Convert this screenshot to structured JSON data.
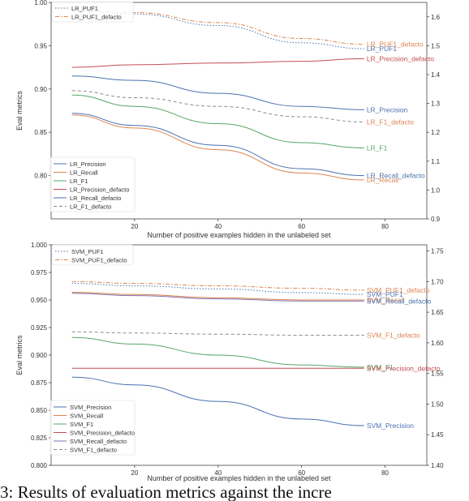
{
  "caption": "3: Results of evaluation metrics against the incre",
  "chart_data": [
    {
      "type": "line",
      "xlabel": "Number of positive examples hidden in the unlabeled set",
      "ylabel": "Eval metrics",
      "xlim": [
        0,
        90
      ],
      "ylim": [
        0.75,
        1.0
      ],
      "y2lim": [
        0.9,
        1.65
      ],
      "xticks": [
        20,
        40,
        60,
        80
      ],
      "yticks": [
        0.8,
        0.85,
        0.9,
        0.95,
        1.0
      ],
      "y2ticks": [
        0.9,
        1.0,
        1.1,
        1.2,
        1.3,
        1.4,
        1.5,
        1.6
      ],
      "xtick_labels": [
        "20",
        "40",
        "60",
        "80"
      ],
      "ytick_labels": [
        "0.80",
        "0.85",
        "0.90",
        "0.95",
        "1.00"
      ],
      "y2tick_labels": [
        "0.9",
        "1.0",
        "1.1",
        "1.2",
        "1.3",
        "1.4",
        "1.5",
        "1.6"
      ],
      "grid": false,
      "legend_top": [
        "LR_PUF1",
        "LR_PUF1_defacto"
      ],
      "legend_bottom": [
        "LR_Precision",
        "LR_Recall",
        "LR_F1",
        "LR_Precision_defacto",
        "LR_Recall_defacto",
        "LR_F1_defacto"
      ],
      "series": [
        {
          "name": "LR_PUF1",
          "axis": "right",
          "color": "#4c72b0",
          "dash": "dot",
          "label": "LR_PUF1",
          "label_color": "#4c72b0",
          "points": [
            [
              5,
              1.62
            ],
            [
              20,
              1.61
            ],
            [
              40,
              1.57
            ],
            [
              60,
              1.51
            ],
            [
              75,
              1.49
            ]
          ]
        },
        {
          "name": "LR_PUF1_defacto",
          "axis": "right",
          "color": "#dd8452",
          "dash": "dashdot",
          "label": "LR_PUF1_defacto",
          "label_color": "#dd8452",
          "points": [
            [
              5,
              1.625
            ],
            [
              20,
              1.615
            ],
            [
              40,
              1.58
            ],
            [
              60,
              1.525
            ],
            [
              75,
              1.505
            ]
          ]
        },
        {
          "name": "LR_Precision_defacto",
          "axis": "left",
          "color": "#c44e52",
          "dash": "solid",
          "label": "LR_Precision_defacto",
          "label_color": "#c44e52",
          "points": [
            [
              5,
              0.925
            ],
            [
              20,
              0.928
            ],
            [
              40,
              0.93
            ],
            [
              60,
              0.932
            ],
            [
              75,
              0.935
            ]
          ]
        },
        {
          "name": "LR_Precision",
          "axis": "left",
          "color": "#4c72b0",
          "dash": "solid",
          "label": "LR_Precision",
          "label_color": "#4c72b0",
          "points": [
            [
              5,
              0.915
            ],
            [
              20,
              0.91
            ],
            [
              40,
              0.895
            ],
            [
              60,
              0.88
            ],
            [
              75,
              0.876
            ]
          ]
        },
        {
          "name": "LR_F1_defacto",
          "axis": "left",
          "color": "#8c8c8c",
          "dash": "dash",
          "label": "LR_F1_defacto",
          "label_color": "#dd8452",
          "points": [
            [
              5,
              0.898
            ],
            [
              20,
              0.89
            ],
            [
              40,
              0.88
            ],
            [
              60,
              0.868
            ],
            [
              75,
              0.862
            ]
          ]
        },
        {
          "name": "LR_F1",
          "axis": "left",
          "color": "#55a868",
          "dash": "solid",
          "label": "LR_F1",
          "label_color": "#55a868",
          "points": [
            [
              5,
              0.893
            ],
            [
              20,
              0.88
            ],
            [
              40,
              0.86
            ],
            [
              60,
              0.838
            ],
            [
              75,
              0.832
            ]
          ]
        },
        {
          "name": "LR_Recall_defacto",
          "axis": "left",
          "color": "#4c72b0",
          "dash": "solid",
          "label": "LR_Recall_defacto",
          "label_color": "#4c72b0",
          "points": [
            [
              5,
              0.872
            ],
            [
              20,
              0.858
            ],
            [
              40,
              0.835
            ],
            [
              60,
              0.808
            ],
            [
              75,
              0.8
            ]
          ]
        },
        {
          "name": "LR_Recall",
          "axis": "left",
          "color": "#dd8452",
          "dash": "solid",
          "label": "LR_Recall",
          "label_color": "#dd8452",
          "points": [
            [
              5,
              0.87
            ],
            [
              20,
              0.855
            ],
            [
              40,
              0.83
            ],
            [
              60,
              0.803
            ],
            [
              75,
              0.795
            ]
          ]
        }
      ]
    },
    {
      "type": "line",
      "xlabel": "Number of positive examples hidden in the unlabeled set",
      "ylabel": "Eval metrics",
      "xlim": [
        0,
        90
      ],
      "ylim": [
        0.8,
        1.0
      ],
      "y2lim": [
        1.4,
        1.76
      ],
      "xticks": [
        20,
        40,
        60,
        80
      ],
      "yticks": [
        0.8,
        0.825,
        0.85,
        0.875,
        0.9,
        0.925,
        0.95,
        0.975,
        1.0
      ],
      "y2ticks": [
        1.4,
        1.45,
        1.5,
        1.55,
        1.6,
        1.65,
        1.7,
        1.75
      ],
      "xtick_labels": [
        "20",
        "40",
        "60",
        "80"
      ],
      "ytick_labels": [
        "0.800",
        "0.825",
        "0.850",
        "0.875",
        "0.900",
        "0.925",
        "0.950",
        "0.975",
        "1.000"
      ],
      "y2tick_labels": [
        "1.40",
        "1.45",
        "1.50",
        "1.55",
        "1.60",
        "1.65",
        "1.70",
        "1.75"
      ],
      "grid": false,
      "legend_top": [
        "SVM_PUF1",
        "SVM_PUF1_defacto"
      ],
      "legend_bottom": [
        "SVM_Precision",
        "SVM_Recall",
        "SVM_F1",
        "SVM_Precision_defacto",
        "SVM_Recall_defacto",
        "SVM_F1_defacto"
      ],
      "series": [
        {
          "name": "SVM_PUF1_defacto",
          "axis": "right",
          "color": "#dd8452",
          "dash": "dashdot",
          "label": "SVM_PUF1_defacto",
          "label_color": "#dd8452",
          "points": [
            [
              5,
              1.7
            ],
            [
              20,
              1.697
            ],
            [
              40,
              1.693
            ],
            [
              60,
              1.689
            ],
            [
              75,
              1.686
            ]
          ]
        },
        {
          "name": "SVM_PUF1",
          "axis": "right",
          "color": "#4c72b0",
          "dash": "dot",
          "label": "SVM_PUF1",
          "label_color": "#4c72b0",
          "points": [
            [
              5,
              1.697
            ],
            [
              20,
              1.693
            ],
            [
              40,
              1.688
            ],
            [
              60,
              1.682
            ],
            [
              75,
              1.679
            ]
          ]
        },
        {
          "name": "SVM_Recall",
          "axis": "left",
          "color": "#dd8452",
          "dash": "solid",
          "label": "SVM_Recall",
          "label_color": "#dd8452",
          "points": [
            [
              5,
              0.957
            ],
            [
              20,
              0.955
            ],
            [
              40,
              0.952
            ],
            [
              60,
              0.95
            ],
            [
              75,
              0.95
            ]
          ]
        },
        {
          "name": "SVM_Recall_defacto",
          "axis": "left",
          "color": "#8172b3",
          "dash": "solid",
          "label": "SVM_Recall_defacto",
          "label_color": "#4c72b0",
          "points": [
            [
              5,
              0.956
            ],
            [
              20,
              0.954
            ],
            [
              40,
              0.951
            ],
            [
              60,
              0.949
            ],
            [
              75,
              0.949
            ]
          ]
        },
        {
          "name": "SVM_F1_defacto",
          "axis": "left",
          "color": "#8c8c8c",
          "dash": "dash",
          "label": "SVM_F1_defacto",
          "label_color": "#dd8452",
          "points": [
            [
              5,
              0.921
            ],
            [
              20,
              0.92
            ],
            [
              40,
              0.919
            ],
            [
              60,
              0.918
            ],
            [
              75,
              0.918
            ]
          ]
        },
        {
          "name": "SVM_F1",
          "axis": "left",
          "color": "#55a868",
          "dash": "solid",
          "label": "SVM_F1",
          "label_color": "#55a868",
          "points": [
            [
              5,
              0.916
            ],
            [
              20,
              0.91
            ],
            [
              40,
              0.9
            ],
            [
              60,
              0.891
            ],
            [
              75,
              0.889
            ]
          ]
        },
        {
          "name": "SVM_Precision_defacto",
          "axis": "left",
          "color": "#c44e52",
          "dash": "solid",
          "label": "SVM_Precision_defacto",
          "label_color": "#c44e52",
          "points": [
            [
              5,
              0.888
            ],
            [
              20,
              0.888
            ],
            [
              40,
              0.888
            ],
            [
              60,
              0.888
            ],
            [
              75,
              0.888
            ]
          ]
        },
        {
          "name": "SVM_Precision",
          "axis": "left",
          "color": "#4c72b0",
          "dash": "solid",
          "label": "SVM_Precision",
          "label_color": "#4c72b0",
          "points": [
            [
              5,
              0.88
            ],
            [
              20,
              0.873
            ],
            [
              40,
              0.858
            ],
            [
              60,
              0.842
            ],
            [
              75,
              0.836
            ]
          ]
        }
      ]
    }
  ]
}
